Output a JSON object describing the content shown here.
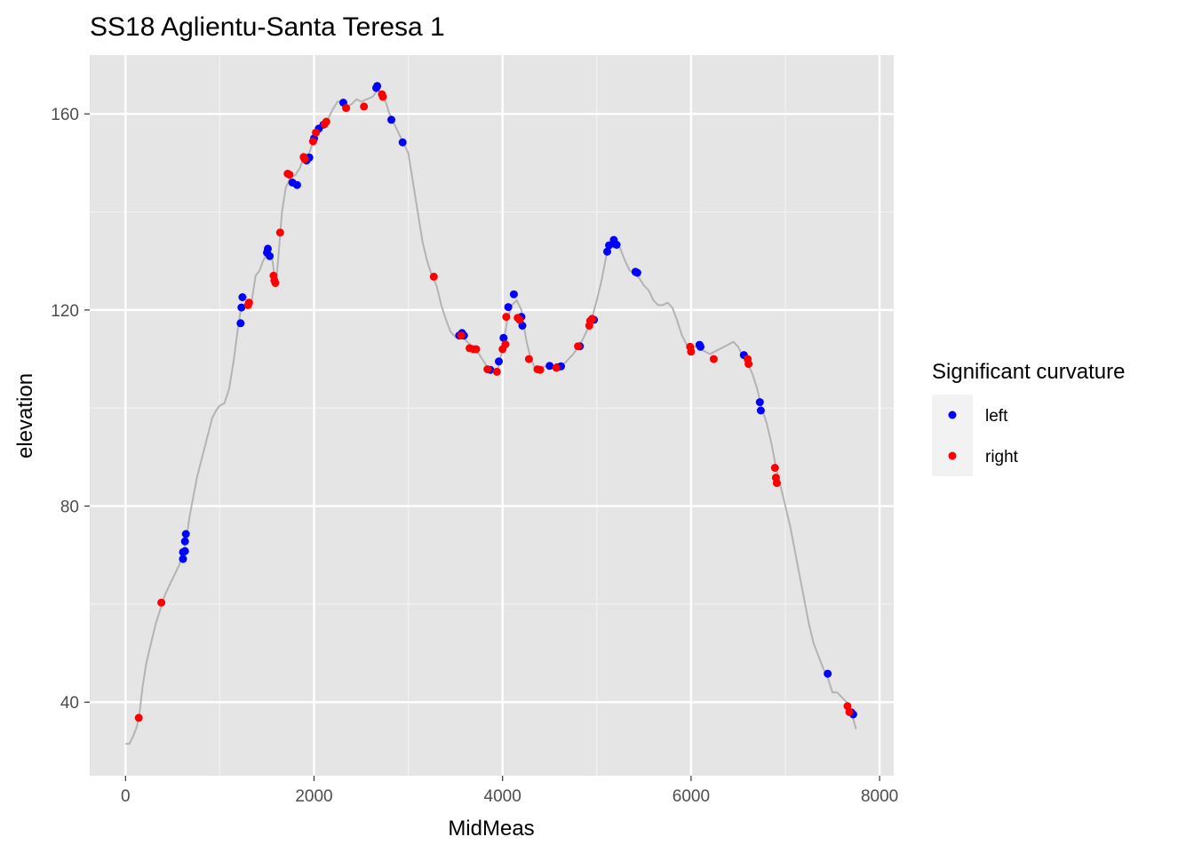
{
  "chart_data": {
    "type": "scatter",
    "title": "SS18 Aglientu-Santa Teresa 1",
    "xlabel": "MidMeas",
    "ylabel": "elevation",
    "xlim": [
      -380,
      8150
    ],
    "ylim": [
      25,
      172
    ],
    "x_ticks": [
      0,
      2000,
      4000,
      6000,
      8000
    ],
    "x_tick_labels": [
      "0",
      "2000",
      "4000",
      "6000",
      "8000"
    ],
    "y_ticks": [
      40,
      80,
      120,
      160
    ],
    "y_tick_labels": [
      "40",
      "80",
      "120",
      "160"
    ],
    "grid": true,
    "panel_background": "#e5e5e5",
    "legend": {
      "title": "Significant curvature",
      "position": "right",
      "entries": [
        {
          "label": "left",
          "color": "#0000ff"
        },
        {
          "label": "right",
          "color": "#ff0000"
        }
      ]
    },
    "profile_line": {
      "color": "#b3b3b3",
      "points": [
        [
          0,
          31.5
        ],
        [
          40,
          31.5
        ],
        [
          80,
          33
        ],
        [
          120,
          35
        ],
        [
          150,
          38
        ],
        [
          180,
          43
        ],
        [
          220,
          48
        ],
        [
          270,
          52
        ],
        [
          320,
          56
        ],
        [
          370,
          59
        ],
        [
          420,
          62
        ],
        [
          470,
          64
        ],
        [
          520,
          66
        ],
        [
          570,
          68
        ],
        [
          620,
          71
        ],
        [
          650,
          74
        ],
        [
          680,
          78
        ],
        [
          720,
          82
        ],
        [
          760,
          86
        ],
        [
          800,
          89
        ],
        [
          840,
          92
        ],
        [
          880,
          95
        ],
        [
          920,
          98
        ],
        [
          960,
          99.5
        ],
        [
          1000,
          100.5
        ],
        [
          1050,
          101
        ],
        [
          1100,
          104
        ],
        [
          1150,
          110
        ],
        [
          1190,
          116
        ],
        [
          1230,
          121
        ],
        [
          1260,
          121
        ],
        [
          1300,
          121
        ],
        [
          1340,
          122
        ],
        [
          1380,
          127
        ],
        [
          1420,
          128
        ],
        [
          1460,
          130
        ],
        [
          1500,
          131.5
        ],
        [
          1530,
          132
        ],
        [
          1560,
          130
        ],
        [
          1580,
          127
        ],
        [
          1600,
          126
        ],
        [
          1630,
          133
        ],
        [
          1660,
          140
        ],
        [
          1700,
          145
        ],
        [
          1750,
          147
        ],
        [
          1800,
          147.5
        ],
        [
          1850,
          149
        ],
        [
          1900,
          151.5
        ],
        [
          1950,
          152
        ],
        [
          2000,
          155
        ],
        [
          2050,
          157.5
        ],
        [
          2100,
          158
        ],
        [
          2150,
          159
        ],
        [
          2200,
          161
        ],
        [
          2250,
          162.5
        ],
        [
          2300,
          162.5
        ],
        [
          2350,
          161.5
        ],
        [
          2400,
          162
        ],
        [
          2450,
          163
        ],
        [
          2500,
          162.5
        ],
        [
          2560,
          163
        ],
        [
          2620,
          163.5
        ],
        [
          2680,
          165
        ],
        [
          2720,
          164
        ],
        [
          2760,
          162.5
        ],
        [
          2800,
          160
        ],
        [
          2850,
          158
        ],
        [
          2900,
          156
        ],
        [
          2950,
          154
        ],
        [
          3000,
          152
        ],
        [
          3050,
          146
        ],
        [
          3100,
          140
        ],
        [
          3150,
          134
        ],
        [
          3200,
          130
        ],
        [
          3250,
          127
        ],
        [
          3300,
          125
        ],
        [
          3350,
          121
        ],
        [
          3400,
          118
        ],
        [
          3450,
          115.5
        ],
        [
          3500,
          114.5
        ],
        [
          3550,
          114.5
        ],
        [
          3600,
          114
        ],
        [
          3650,
          113
        ],
        [
          3700,
          112
        ],
        [
          3750,
          111
        ],
        [
          3800,
          109.5
        ],
        [
          3850,
          108
        ],
        [
          3900,
          107.5
        ],
        [
          3950,
          108
        ],
        [
          4000,
          112
        ],
        [
          4050,
          118
        ],
        [
          4100,
          121
        ],
        [
          4150,
          122
        ],
        [
          4200,
          120
        ],
        [
          4250,
          114
        ],
        [
          4300,
          110
        ],
        [
          4350,
          108
        ],
        [
          4400,
          108
        ],
        [
          4450,
          108.5
        ],
        [
          4500,
          108.5
        ],
        [
          4550,
          108.5
        ],
        [
          4600,
          108.5
        ],
        [
          4650,
          109
        ],
        [
          4700,
          110
        ],
        [
          4750,
          111
        ],
        [
          4800,
          112.5
        ],
        [
          4850,
          114
        ],
        [
          4900,
          116
        ],
        [
          4950,
          118.5
        ],
        [
          5000,
          122
        ],
        [
          5050,
          126
        ],
        [
          5100,
          131
        ],
        [
          5150,
          133
        ],
        [
          5200,
          134
        ],
        [
          5250,
          132.5
        ],
        [
          5300,
          130
        ],
        [
          5350,
          128
        ],
        [
          5400,
          127.5
        ],
        [
          5450,
          126.5
        ],
        [
          5500,
          125
        ],
        [
          5550,
          124
        ],
        [
          5600,
          122
        ],
        [
          5650,
          121
        ],
        [
          5700,
          121
        ],
        [
          5750,
          121.5
        ],
        [
          5800,
          120.5
        ],
        [
          5850,
          118
        ],
        [
          5900,
          115
        ],
        [
          5950,
          113
        ],
        [
          6000,
          112.5
        ],
        [
          6050,
          112.5
        ],
        [
          6100,
          112
        ],
        [
          6150,
          111.5
        ],
        [
          6200,
          111
        ],
        [
          6250,
          111.5
        ],
        [
          6300,
          112
        ],
        [
          6350,
          112.5
        ],
        [
          6400,
          113
        ],
        [
          6450,
          113.5
        ],
        [
          6500,
          112.5
        ],
        [
          6550,
          110.5
        ],
        [
          6600,
          109
        ],
        [
          6650,
          107
        ],
        [
          6700,
          104
        ],
        [
          6750,
          100
        ],
        [
          6800,
          97
        ],
        [
          6850,
          93
        ],
        [
          6900,
          88
        ],
        [
          6950,
          84
        ],
        [
          7000,
          80
        ],
        [
          7050,
          76
        ],
        [
          7100,
          71
        ],
        [
          7150,
          66
        ],
        [
          7200,
          61
        ],
        [
          7250,
          56
        ],
        [
          7300,
          52
        ],
        [
          7350,
          49.5
        ],
        [
          7400,
          47
        ],
        [
          7450,
          45
        ],
        [
          7500,
          42
        ],
        [
          7550,
          42
        ],
        [
          7600,
          41
        ],
        [
          7650,
          40
        ],
        [
          7700,
          38
        ],
        [
          7750,
          34.5
        ]
      ]
    },
    "series": [
      {
        "name": "left",
        "color": "#0000ff",
        "points": [
          [
            610,
            69.2
          ],
          [
            610,
            70.6
          ],
          [
            630,
            70.8
          ],
          [
            630,
            72.8
          ],
          [
            640,
            74.3
          ],
          [
            1220,
            117.3
          ],
          [
            1230,
            120.5
          ],
          [
            1240,
            122.6
          ],
          [
            1500,
            131.7
          ],
          [
            1510,
            132.5
          ],
          [
            1530,
            131.0
          ],
          [
            1770,
            146.0
          ],
          [
            1820,
            145.5
          ],
          [
            1920,
            150.5
          ],
          [
            1950,
            151.1
          ],
          [
            2000,
            155.0
          ],
          [
            2050,
            157.0
          ],
          [
            2100,
            157.8
          ],
          [
            2310,
            162.3
          ],
          [
            2660,
            165.3
          ],
          [
            2670,
            165.7
          ],
          [
            2820,
            158.8
          ],
          [
            2940,
            154.2
          ],
          [
            3540,
            114.8
          ],
          [
            3570,
            115.3
          ],
          [
            3590,
            114.8
          ],
          [
            3870,
            107.8
          ],
          [
            3960,
            109.5
          ],
          [
            4010,
            114.3
          ],
          [
            4060,
            120.6
          ],
          [
            4120,
            123.2
          ],
          [
            4200,
            118.6
          ],
          [
            4210,
            116.8
          ],
          [
            4500,
            108.6
          ],
          [
            4580,
            108.3
          ],
          [
            4620,
            108.5
          ],
          [
            4820,
            112.6
          ],
          [
            4970,
            118.0
          ],
          [
            5110,
            131.9
          ],
          [
            5130,
            133.2
          ],
          [
            5180,
            134.3
          ],
          [
            5190,
            133.5
          ],
          [
            5210,
            133.3
          ],
          [
            5410,
            127.8
          ],
          [
            5430,
            127.6
          ],
          [
            6090,
            112.9
          ],
          [
            6100,
            112.5
          ],
          [
            6560,
            110.8
          ],
          [
            6730,
            101.2
          ],
          [
            6740,
            99.5
          ],
          [
            7450,
            45.8
          ],
          [
            7700,
            37.9
          ],
          [
            7720,
            37.5
          ]
        ]
      },
      {
        "name": "right",
        "color": "#ff0000",
        "points": [
          [
            140,
            36.8
          ],
          [
            380,
            60.3
          ],
          [
            1300,
            121.0
          ],
          [
            1310,
            121.5
          ],
          [
            1570,
            127.0
          ],
          [
            1580,
            126.0
          ],
          [
            1590,
            125.5
          ],
          [
            1640,
            135.8
          ],
          [
            1720,
            147.8
          ],
          [
            1740,
            147.6
          ],
          [
            1890,
            151.2
          ],
          [
            1900,
            150.8
          ],
          [
            1990,
            154.4
          ],
          [
            2020,
            156.2
          ],
          [
            2110,
            157.9
          ],
          [
            2130,
            158.4
          ],
          [
            2340,
            161.2
          ],
          [
            2530,
            161.5
          ],
          [
            2720,
            164.0
          ],
          [
            2730,
            163.5
          ],
          [
            3270,
            126.8
          ],
          [
            3560,
            114.8
          ],
          [
            3650,
            112.2
          ],
          [
            3690,
            112.0
          ],
          [
            3720,
            112.0
          ],
          [
            3840,
            107.9
          ],
          [
            3940,
            107.4
          ],
          [
            4000,
            112.0
          ],
          [
            4030,
            113.0
          ],
          [
            4040,
            118.6
          ],
          [
            4160,
            118.4
          ],
          [
            4180,
            118.0
          ],
          [
            4280,
            110.0
          ],
          [
            4370,
            107.9
          ],
          [
            4400,
            107.8
          ],
          [
            4570,
            108.2
          ],
          [
            4800,
            112.6
          ],
          [
            4920,
            116.8
          ],
          [
            4930,
            117.8
          ],
          [
            4950,
            118.2
          ],
          [
            5990,
            112.5
          ],
          [
            6000,
            111.5
          ],
          [
            6240,
            110.0
          ],
          [
            6600,
            110.0
          ],
          [
            6610,
            109.0
          ],
          [
            6890,
            87.8
          ],
          [
            6900,
            85.8
          ],
          [
            6910,
            84.7
          ],
          [
            7660,
            39.2
          ],
          [
            7680,
            38.0
          ]
        ]
      }
    ]
  }
}
